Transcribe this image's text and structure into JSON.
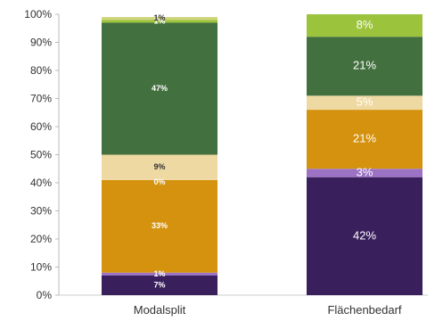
{
  "chart_data": {
    "type": "bar",
    "stacked": true,
    "categories": [
      "Modalsplit",
      "Flächenbedarf"
    ],
    "ylim": [
      0,
      100
    ],
    "yticks": [
      "0%",
      "10%",
      "20%",
      "30%",
      "40%",
      "50%",
      "60%",
      "70%",
      "80%",
      "90%",
      "100%"
    ],
    "grid": false,
    "legend": "none",
    "series": [
      {
        "color": "#3a1f5d",
        "values": [
          7,
          42
        ],
        "labels": [
          "7%",
          "42%"
        ]
      },
      {
        "color": "#9b72c4",
        "values": [
          1,
          3
        ],
        "labels": [
          "1%",
          "3%"
        ]
      },
      {
        "color": "#d4920e",
        "values": [
          33,
          21
        ],
        "labels": [
          "33%",
          "21%"
        ]
      },
      {
        "color": "#f0dba8",
        "values": [
          0,
          0
        ],
        "labels": [
          "0%",
          ""
        ]
      },
      {
        "color": "#efd9a3",
        "values": [
          9,
          5
        ],
        "labels": [
          "9%",
          "5%"
        ]
      },
      {
        "color": "#43703f",
        "values": [
          47,
          21
        ],
        "labels": [
          "47%",
          "21%"
        ]
      },
      {
        "color": "#9cc33c",
        "values": [
          1,
          8
        ],
        "labels": [
          "1%",
          "8%"
        ]
      },
      {
        "color": "#cfd37a",
        "values": [
          1,
          0
        ],
        "labels": [
          "1%",
          ""
        ]
      }
    ]
  }
}
